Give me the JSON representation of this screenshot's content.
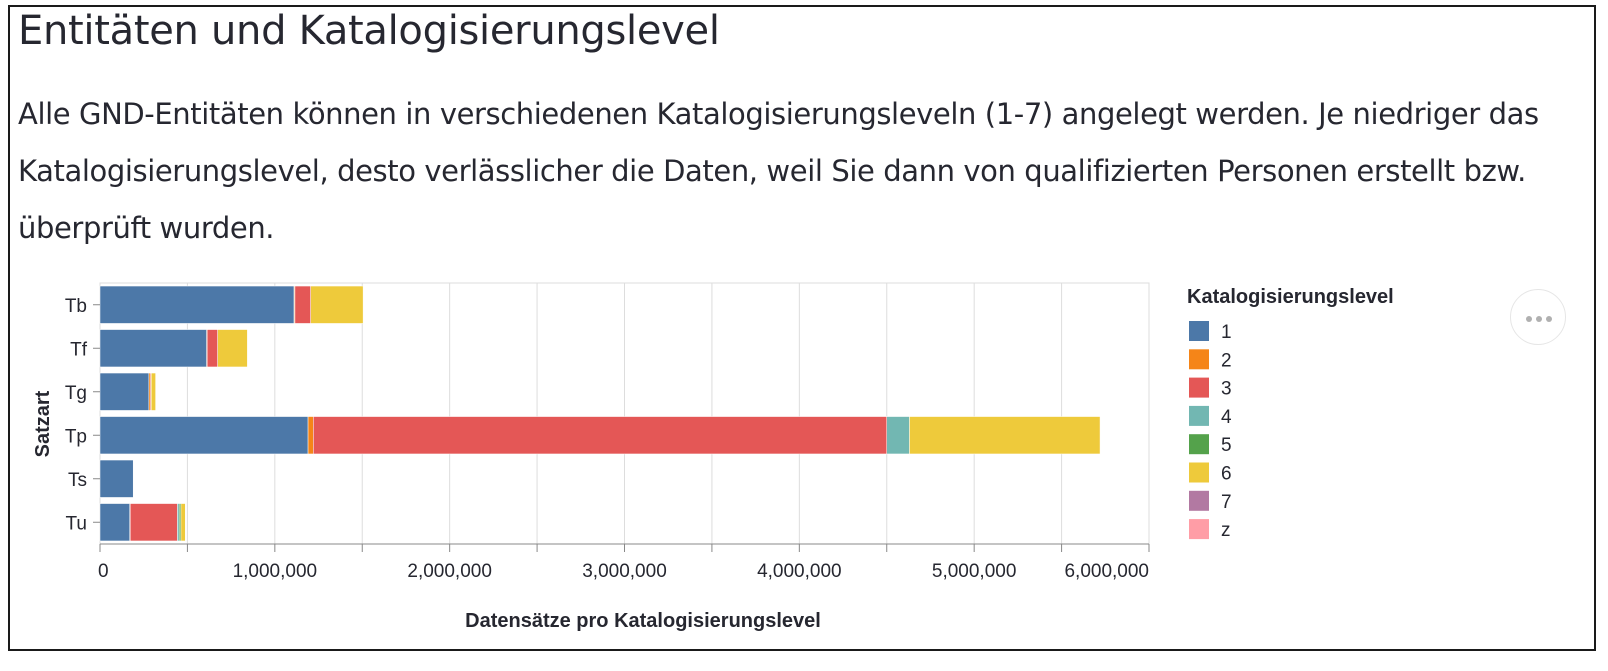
{
  "heading": "Entitäten und Katalogisierungslevel",
  "description": "Alle GND-Entitäten können in verschiedenen Katalogisierungsleveln (1-7) angelegt werden. Je niedriger das Katalogisierungslevel, desto verlässlicher die Daten, weil Sie dann von qualifizierten Personen erstellt bzw. überprüft wurden.",
  "actions_menu_icon": "ellipsis-icon",
  "chart_data": {
    "type": "bar",
    "orientation": "horizontal",
    "stacked": true,
    "title": "",
    "xlabel": "Datensätze pro Katalogisierungslevel",
    "ylabel": "Satzart",
    "xlim": [
      0,
      6000000
    ],
    "x_ticks": [
      0,
      1000000,
      2000000,
      3000000,
      4000000,
      5000000,
      6000000
    ],
    "x_tick_labels": [
      "0",
      "1,000,000",
      "2,000,000",
      "3,000,000",
      "4,000,000",
      "5,000,000",
      "6,000,000"
    ],
    "grid": true,
    "legend_title": "Katalogisierungslevel",
    "legend_position": "right",
    "categories": [
      "Tb",
      "Tf",
      "Tg",
      "Tp",
      "Ts",
      "Tu"
    ],
    "series": [
      {
        "name": "1",
        "color": "#4c78a8",
        "values": [
          1110000,
          610000,
          280000,
          1190000,
          190000,
          170000
        ]
      },
      {
        "name": "2",
        "color": "#f58518",
        "values": [
          5000,
          3000,
          8000,
          30000,
          0,
          3000
        ]
      },
      {
        "name": "3",
        "color": "#e45756",
        "values": [
          90000,
          60000,
          5000,
          3280000,
          0,
          270000
        ]
      },
      {
        "name": "4",
        "color": "#72b7b2",
        "values": [
          0,
          0,
          0,
          130000,
          0,
          10000
        ]
      },
      {
        "name": "5",
        "color": "#54a24b",
        "values": [
          0,
          0,
          0,
          0,
          0,
          10000
        ]
      },
      {
        "name": "6",
        "color": "#eeca3b",
        "values": [
          300000,
          170000,
          25000,
          1090000,
          0,
          25000
        ]
      },
      {
        "name": "7",
        "color": "#b279a2",
        "values": [
          0,
          0,
          0,
          0,
          0,
          0
        ]
      },
      {
        "name": "z",
        "color": "#ff9da6",
        "values": [
          0,
          0,
          0,
          0,
          0,
          0
        ]
      }
    ]
  }
}
